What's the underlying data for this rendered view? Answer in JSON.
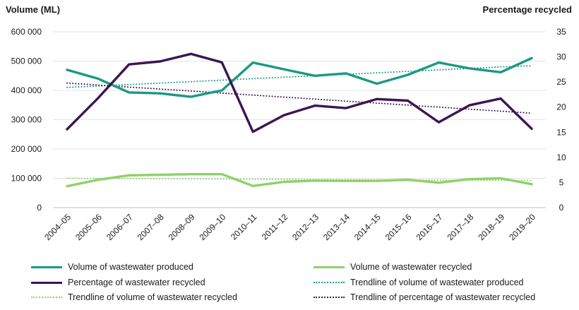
{
  "chart_data": {
    "type": "line",
    "categories": [
      "2004–05",
      "2005–06",
      "2006–07",
      "2007–08",
      "2008–09",
      "2009–10",
      "2010–11",
      "2011–12",
      "2012–13",
      "2013–14",
      "2014–15",
      "2015–16",
      "2016–17",
      "2017–18",
      "2018–19",
      "2019–20"
    ],
    "ylabel": "Volume (ML)",
    "y2label": "Percentage recycled",
    "ylim": [
      0,
      600000
    ],
    "y2lim": [
      0,
      35
    ],
    "yticks": [
      "0",
      "100 000",
      "200 000",
      "300 000",
      "400 000",
      "500 000",
      "600 000"
    ],
    "y2ticks": [
      "0",
      "5",
      "10",
      "15",
      "20",
      "25",
      "30",
      "35"
    ],
    "grid": "horizontal",
    "legend_position": "bottom",
    "series": [
      {
        "name": "Volume of wastewater produced",
        "axis": "left",
        "style": "solid",
        "color": "#1a9a80",
        "values": [
          470000,
          440000,
          393000,
          390000,
          378000,
          400000,
          495000,
          472000,
          450000,
          458000,
          423000,
          453000,
          495000,
          475000,
          462000,
          510000
        ]
      },
      {
        "name": "Volume of wastewater recycled",
        "axis": "left",
        "style": "solid",
        "color": "#8fd16a",
        "values": [
          73000,
          95000,
          110000,
          112000,
          114000,
          114000,
          74000,
          88000,
          92000,
          91000,
          91000,
          95000,
          85000,
          97000,
          100000,
          80000
        ]
      },
      {
        "name": "Percentage of wastewater recycled",
        "axis": "right",
        "style": "solid",
        "color": "#3a1652",
        "values": [
          15.6,
          21.8,
          28.5,
          29.1,
          30.6,
          28.9,
          15.1,
          18.4,
          20.3,
          19.8,
          21.6,
          21.3,
          17.0,
          20.4,
          21.7,
          15.7
        ]
      },
      {
        "name": "Trendline of volume of wastewater produced",
        "axis": "left",
        "style": "dotted",
        "color": "#1a9a80",
        "values": [
          410000,
          415000,
          420000,
          425000,
          430000,
          435000,
          440000,
          445000,
          450000,
          455000,
          460000,
          465000,
          470000,
          475000,
          480000,
          484000
        ]
      },
      {
        "name": "Trendline of volume of wastewater recycled",
        "axis": "left",
        "style": "dotted",
        "color": "#8fd16a",
        "values": [
          100000,
          99500,
          99000,
          98500,
          98000,
          97500,
          97000,
          96500,
          96000,
          95500,
          95000,
          94500,
          94000,
          93500,
          93000,
          92500
        ]
      },
      {
        "name": "Trendline of percentage of wastewater recycled",
        "axis": "right",
        "style": "dotted",
        "color": "#3a1652",
        "values": [
          24.8,
          24.4,
          24.0,
          23.6,
          23.2,
          22.8,
          22.4,
          22.0,
          21.6,
          21.2,
          20.8,
          20.4,
          20.0,
          19.6,
          19.2,
          18.8
        ]
      }
    ]
  }
}
